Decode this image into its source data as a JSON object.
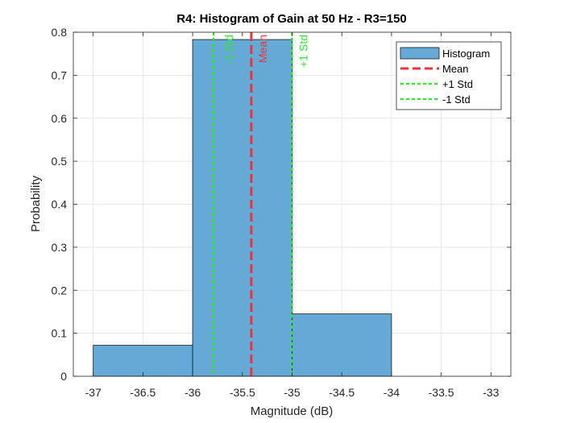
{
  "chart_data": {
    "type": "bar",
    "title": "R4: Histogram of Gain at 50 Hz  - R3=150",
    "xlabel": "Magnitude (dB)",
    "ylabel": "Probability",
    "xlim": [
      -37.2,
      -32.8
    ],
    "ylim": [
      0,
      0.8
    ],
    "xticks": [
      -37,
      -36.5,
      -36,
      -35.5,
      -35,
      -34.5,
      -34,
      -33.5,
      -33
    ],
    "xtick_labels": [
      "-37",
      "-36.5",
      "-36",
      "-35.5",
      "-35",
      "-34.5",
      "-34",
      "-33.5",
      "-33"
    ],
    "yticks": [
      0,
      0.1,
      0.2,
      0.3,
      0.4,
      0.5,
      0.6,
      0.7,
      0.8
    ],
    "ytick_labels": [
      "0",
      "0.1",
      "0.2",
      "0.3",
      "0.4",
      "0.5",
      "0.6",
      "0.7",
      "0.8"
    ],
    "grid": true,
    "bins": [
      {
        "x0": -37,
        "x1": -36,
        "value": 0.072
      },
      {
        "x0": -36,
        "x1": -35,
        "value": 0.783
      },
      {
        "x0": -35,
        "x1": -34,
        "value": 0.145
      }
    ],
    "mean": -35.41,
    "mean_label": "Mean",
    "plus_std": -35.0,
    "plus_std_label": "+1 Std",
    "minus_std": -35.79,
    "minus_std_label": "-1 Std",
    "colors": {
      "bar_fill": "#65a9d7",
      "bar_edge": "#1a1a1a",
      "mean": "#e8363b",
      "std": "#2ee82e",
      "grid": "#e0e0e0",
      "axis": "#262626"
    },
    "legend": {
      "placement": "top-right",
      "entries": [
        {
          "label": "Histogram",
          "kind": "patch"
        },
        {
          "label": "Mean",
          "kind": "mean-line"
        },
        {
          "label": "+1 Std",
          "kind": "std-line"
        },
        {
          "label": "-1 Std",
          "kind": "std-line"
        }
      ]
    }
  }
}
